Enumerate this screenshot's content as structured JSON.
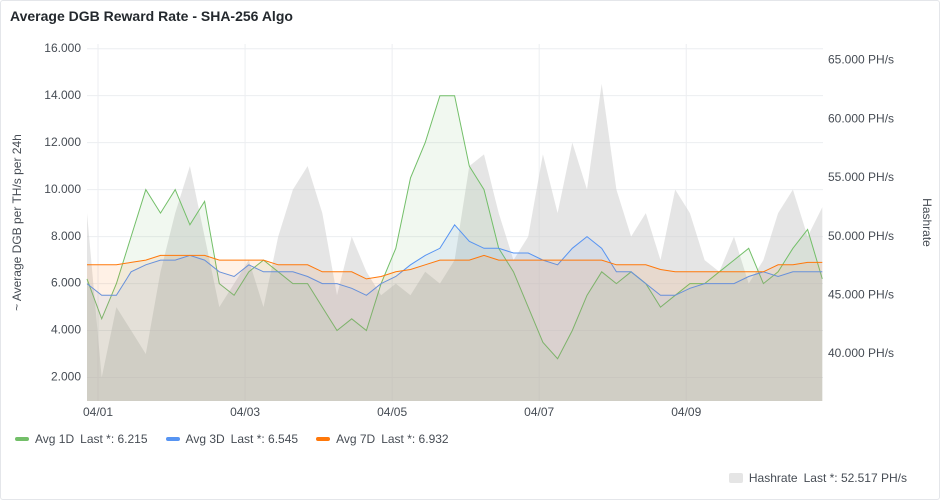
{
  "chart_data": {
    "type": "line",
    "title": "Average DGB Reward Rate - SHA-256 Algo",
    "y_label": "~ Average DGB per TH/s per 24h",
    "y2_label": "Hashrate",
    "x": [
      0.85,
      1.05,
      1.25,
      1.45,
      1.65,
      1.85,
      2.05,
      2.25,
      2.45,
      2.65,
      2.85,
      3.05,
      3.25,
      3.45,
      3.65,
      3.85,
      4.05,
      4.25,
      4.45,
      4.65,
      4.85,
      5.05,
      5.25,
      5.45,
      5.65,
      5.85,
      6.05,
      6.25,
      6.45,
      6.65,
      6.85,
      7.05,
      7.25,
      7.45,
      7.65,
      7.85,
      8.05,
      8.25,
      8.45,
      8.65,
      8.85,
      9.05,
      9.25,
      9.45,
      9.65,
      9.85,
      10.05,
      10.25,
      10.45,
      10.65,
      10.85
    ],
    "xlim": [
      0.85,
      10.86
    ],
    "xticks": [
      {
        "value": 1,
        "label": "04/01"
      },
      {
        "value": 3,
        "label": "04/03"
      },
      {
        "value": 5,
        "label": "04/05"
      },
      {
        "value": 7,
        "label": "04/07"
      },
      {
        "value": 9,
        "label": "04/09"
      }
    ],
    "ylim": [
      1,
      16.2
    ],
    "yticks": [
      {
        "value": 2,
        "label": "2.000"
      },
      {
        "value": 4,
        "label": "4.000"
      },
      {
        "value": 6,
        "label": "6.000"
      },
      {
        "value": 8,
        "label": "8.000"
      },
      {
        "value": 10,
        "label": "10.000"
      },
      {
        "value": 12,
        "label": "12.000"
      },
      {
        "value": 14,
        "label": "14.000"
      },
      {
        "value": 16,
        "label": "16.000"
      }
    ],
    "y2lim": [
      36,
      66.4
    ],
    "y2ticks": [
      {
        "value": 40,
        "label": "40.000 PH/s"
      },
      {
        "value": 45,
        "label": "45.000 PH/s"
      },
      {
        "value": 50,
        "label": "50.000 PH/s"
      },
      {
        "value": 55,
        "label": "55.000 PH/s"
      },
      {
        "value": 60,
        "label": "60.000 PH/s"
      },
      {
        "value": 65,
        "label": "65.000 PH/s"
      }
    ],
    "grid": true,
    "series": [
      {
        "name": "Hashrate",
        "color": "#cccccc",
        "axis": "y2",
        "last_label": "Last *: 52.517 PH/s",
        "values": [
          52,
          38,
          44,
          42,
          40,
          47,
          52,
          56,
          50,
          44,
          46,
          48,
          44,
          50,
          54,
          56,
          52,
          45,
          50,
          47,
          45,
          46,
          45,
          47,
          46,
          48,
          56,
          57,
          52,
          48,
          50,
          57,
          52,
          58,
          54,
          63,
          54,
          50,
          52,
          48,
          54,
          52,
          48,
          47,
          50,
          46,
          48,
          52,
          54,
          50,
          52.5
        ]
      },
      {
        "name": "Avg 1D",
        "color": "#73bf69",
        "last_label": "Last *: 6.215",
        "values": [
          6.2,
          4.5,
          6.0,
          8.0,
          10.0,
          9.0,
          10.0,
          8.5,
          9.5,
          6.0,
          5.5,
          6.5,
          7.0,
          6.5,
          6.0,
          6.0,
          5.0,
          4.0,
          4.5,
          4.0,
          6.0,
          7.5,
          10.5,
          12.0,
          14.0,
          14.0,
          11.0,
          10.0,
          7.5,
          6.5,
          5.0,
          3.5,
          2.8,
          4.0,
          5.5,
          6.5,
          6.0,
          6.5,
          6.0,
          5.0,
          5.5,
          6.0,
          6.0,
          6.5,
          7.0,
          7.5,
          6.0,
          6.5,
          7.5,
          8.3,
          6.2
        ]
      },
      {
        "name": "Avg 3D",
        "color": "#5794f2",
        "last_label": "Last *: 6.545",
        "values": [
          6.0,
          5.5,
          5.5,
          6.5,
          6.8,
          7.0,
          7.0,
          7.2,
          7.0,
          6.5,
          6.3,
          6.8,
          6.5,
          6.5,
          6.5,
          6.3,
          6.0,
          6.0,
          5.8,
          5.5,
          6.0,
          6.3,
          6.8,
          7.2,
          7.5,
          8.5,
          7.8,
          7.5,
          7.5,
          7.3,
          7.3,
          7.0,
          6.8,
          7.5,
          8.0,
          7.5,
          6.5,
          6.5,
          6.0,
          5.5,
          5.5,
          5.8,
          6.0,
          6.0,
          6.0,
          6.3,
          6.5,
          6.3,
          6.5,
          6.5,
          6.5
        ]
      },
      {
        "name": "Avg 7D",
        "color": "#ff780a",
        "last_label": "Last *: 6.932",
        "values": [
          6.8,
          6.8,
          6.8,
          6.9,
          7.0,
          7.2,
          7.2,
          7.2,
          7.2,
          7.0,
          7.0,
          7.0,
          7.0,
          6.8,
          6.8,
          6.8,
          6.5,
          6.5,
          6.5,
          6.2,
          6.3,
          6.5,
          6.6,
          6.8,
          7.0,
          7.0,
          7.0,
          7.2,
          7.0,
          7.0,
          7.0,
          7.0,
          7.0,
          7.0,
          7.0,
          7.0,
          6.8,
          6.8,
          6.8,
          6.6,
          6.5,
          6.5,
          6.5,
          6.5,
          6.5,
          6.5,
          6.5,
          6.8,
          6.8,
          6.9,
          6.9
        ]
      }
    ]
  }
}
